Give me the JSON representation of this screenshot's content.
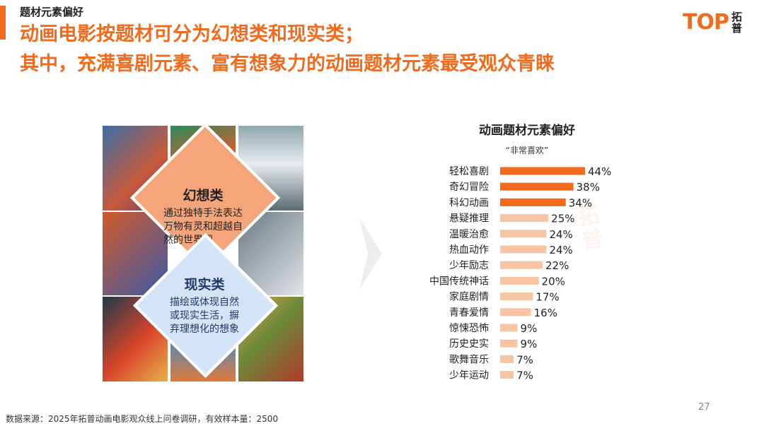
{
  "header": {
    "section_label": "题材元素偏好",
    "headline_line1": "动画电影按题材可分为幻想类和现实类；",
    "headline_line2": "其中，充满喜剧元素、富有想象力的动画题材元素最受观众青睐"
  },
  "logo": {
    "word": "TOP",
    "cn": "拓普"
  },
  "left_panel": {
    "fantasy": {
      "title": "幻想类",
      "lines": [
        "通过独特手法表达",
        "万物有灵和超越自",
        "然的世界观"
      ]
    },
    "reality": {
      "title": "现实类",
      "lines": [
        "描绘或体现自然",
        "或现实生活，摒",
        "弃理想化的想象"
      ]
    }
  },
  "chart_data": {
    "type": "bar",
    "orientation": "horizontal",
    "title": "动画题材元素偏好",
    "subtitle": "“非常喜欢”",
    "categories": [
      "轻松喜剧",
      "奇幻冒险",
      "科幻动画",
      "悬疑推理",
      "温暖治愈",
      "热血动作",
      "少年励志",
      "中国传统神话",
      "家庭剧情",
      "青春爱情",
      "惊悚恐怖",
      "历史史实",
      "歌舞音乐",
      "少年运动"
    ],
    "values": [
      44,
      38,
      34,
      25,
      24,
      24,
      22,
      20,
      17,
      16,
      9,
      9,
      7,
      7
    ],
    "value_suffix": "%",
    "highlight_count": 3,
    "colors": {
      "highlight": "#f26a1b",
      "normal": "#f7c5a4"
    }
  },
  "footer": {
    "source": "数据来源：2025年拓普动画电影观众线上问卷调研，有效样本量：2500",
    "page_number": "27"
  },
  "colors": {
    "accent": "#f26a1b"
  }
}
